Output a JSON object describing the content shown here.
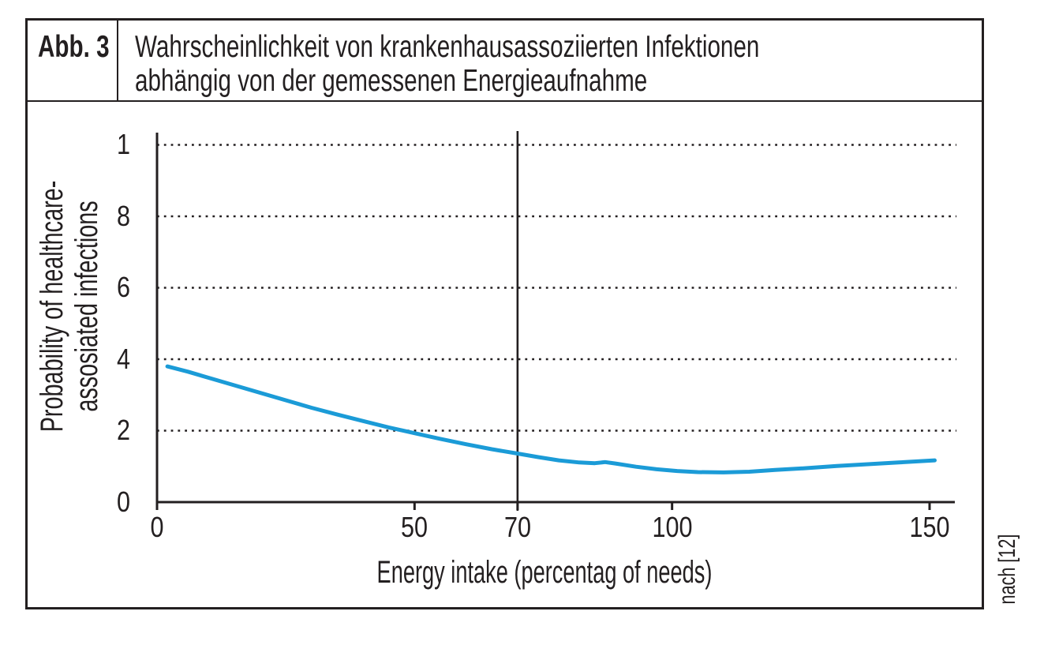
{
  "header": {
    "figure_label": "Abb. 3",
    "title_line1": "Wahrscheinlichkeit von krankenhausassoziierten Infektionen",
    "title_line2": "abhängig von der gemessenen Energieaufnahme"
  },
  "source_note": "nach [12]",
  "chart_data": {
    "type": "line",
    "xlabel": "Energy intake (percentag of needs)",
    "ylabel_line1": "Probability of healthcare-",
    "ylabel_line2": "assosiated infections",
    "xlim": [
      0,
      150
    ],
    "ylim": [
      0,
      1
    ],
    "grid_style": "dotted-horizontal",
    "gridlines_y": [
      0.2,
      0.4,
      0.6,
      0.8,
      1.0
    ],
    "reference_line_x": 70,
    "xticks": [
      {
        "value": 0,
        "label": "0"
      },
      {
        "value": 50,
        "label": "50"
      },
      {
        "value": 70,
        "label": "70"
      },
      {
        "value": 100,
        "label": "100"
      },
      {
        "value": 150,
        "label": "150"
      }
    ],
    "yticks": [
      {
        "value": 0,
        "label": "0"
      },
      {
        "value": 0.2,
        "label": "2"
      },
      {
        "value": 0.4,
        "label": "4"
      },
      {
        "value": 0.6,
        "label": "6"
      },
      {
        "value": 0.8,
        "label": "8"
      },
      {
        "value": 1,
        "label": "1"
      }
    ],
    "colors": {
      "axis": "#231f20",
      "curve": "#1b9bd7"
    },
    "series": [
      {
        "name": "Probability of healthcare-assosiated infections",
        "color": "#1b9bd7",
        "points": [
          [
            2,
            0.38
          ],
          [
            6,
            0.365
          ],
          [
            10,
            0.348
          ],
          [
            15,
            0.327
          ],
          [
            20,
            0.306
          ],
          [
            25,
            0.285
          ],
          [
            30,
            0.264
          ],
          [
            35,
            0.245
          ],
          [
            40,
            0.227
          ],
          [
            45,
            0.209
          ],
          [
            50,
            0.193
          ],
          [
            55,
            0.177
          ],
          [
            60,
            0.162
          ],
          [
            65,
            0.148
          ],
          [
            70,
            0.136
          ],
          [
            74,
            0.126
          ],
          [
            78,
            0.117
          ],
          [
            82,
            0.111
          ],
          [
            85,
            0.109
          ],
          [
            87,
            0.112
          ],
          [
            89,
            0.108
          ],
          [
            93,
            0.099
          ],
          [
            97,
            0.092
          ],
          [
            101,
            0.087
          ],
          [
            105,
            0.084
          ],
          [
            110,
            0.083
          ],
          [
            115,
            0.085
          ],
          [
            120,
            0.09
          ],
          [
            126,
            0.095
          ],
          [
            132,
            0.101
          ],
          [
            138,
            0.106
          ],
          [
            144,
            0.111
          ],
          [
            151,
            0.117
          ]
        ]
      }
    ]
  }
}
